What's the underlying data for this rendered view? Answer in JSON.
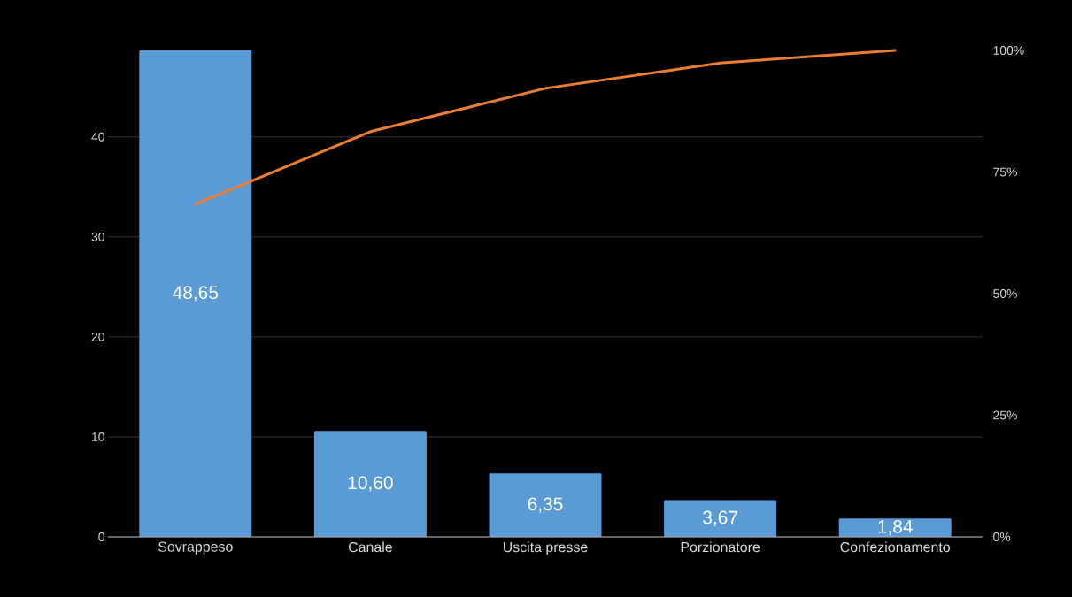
{
  "chart_data": {
    "type": "bar",
    "categories": [
      "Sovrappeso",
      "Canale",
      "Uscita presse",
      "Porzionatore",
      "Confezionamento"
    ],
    "series": [
      {
        "color": "#5b9bd5",
        "values": [
          48.65,
          10.6,
          6.35,
          3.67,
          1.84
        ],
        "value_labels": [
          "48,65",
          "10,60",
          "6,35",
          "3,67",
          "1,84"
        ]
      },
      {
        "type": "line",
        "axis": "y2",
        "color": "#ed7d31",
        "values": [
          68.4,
          83.3,
          92.2,
          97.4,
          100
        ]
      }
    ],
    "ylim": [
      0,
      48.65
    ],
    "yticks": [
      0,
      10,
      20,
      30,
      40
    ],
    "y2lim": [
      0,
      100
    ],
    "y2ticks": [
      {
        "value": 0,
        "label": "0%"
      },
      {
        "value": 25,
        "label": "25%"
      },
      {
        "value": 50,
        "label": "50%"
      },
      {
        "value": 75,
        "label": "75%"
      },
      {
        "value": 100,
        "label": "100%"
      }
    ],
    "grid": "y"
  }
}
